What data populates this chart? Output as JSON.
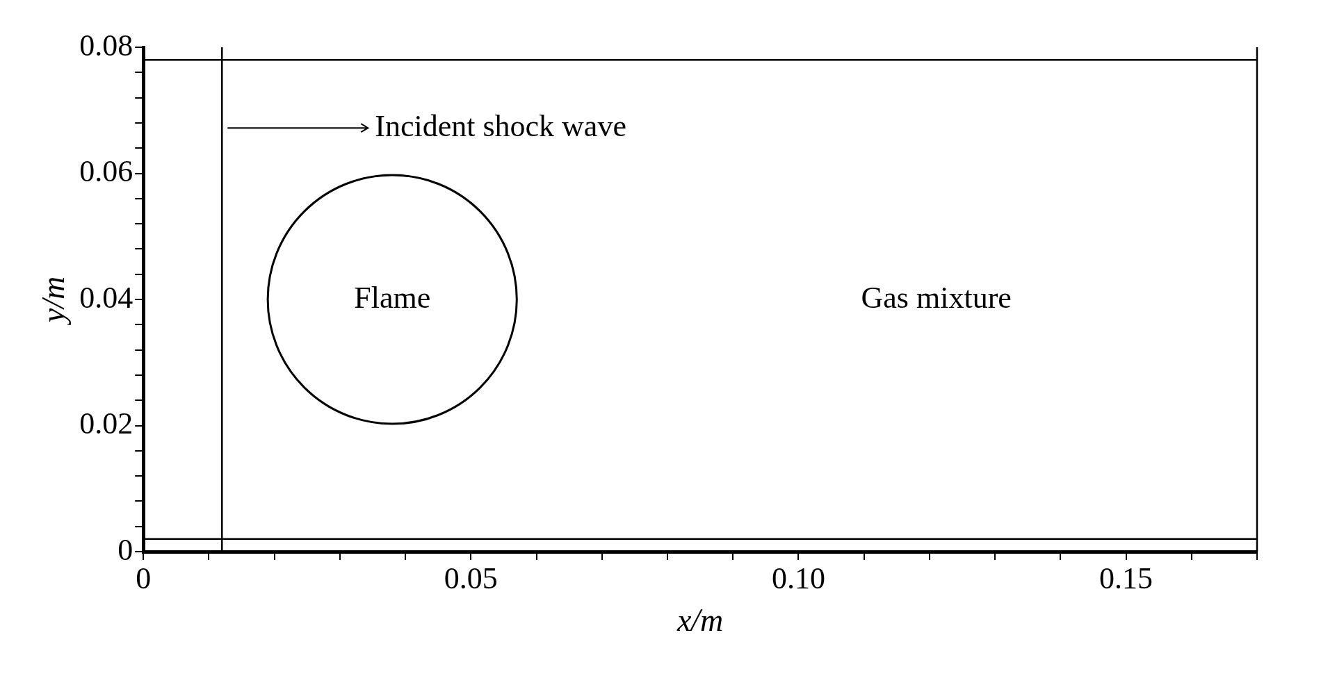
{
  "chart_data": {
    "type": "line",
    "xlabel": "x/m",
    "ylabel": "y/m",
    "xlim": [
      0,
      0.17
    ],
    "ylim": [
      0,
      0.08
    ],
    "xticks": [
      0,
      {
        "value": 0.01,
        "label": null
      },
      {
        "value": 0.02,
        "label": null
      },
      {
        "value": 0.03,
        "label": null
      },
      {
        "value": 0.04,
        "label": null
      },
      {
        "value": 0.05,
        "label": "0.05"
      },
      {
        "value": 0.06,
        "label": null
      },
      {
        "value": 0.07,
        "label": null
      },
      {
        "value": 0.08,
        "label": null
      },
      {
        "value": 0.09,
        "label": null
      },
      {
        "value": 0.1,
        "label": "0.10"
      },
      {
        "value": 0.11,
        "label": null
      },
      {
        "value": 0.12,
        "label": null
      },
      {
        "value": 0.13,
        "label": null
      },
      {
        "value": 0.14,
        "label": null
      },
      {
        "value": 0.15,
        "label": "0.15"
      },
      {
        "value": 0.16,
        "label": null
      },
      {
        "value": 0.17,
        "label": null
      }
    ],
    "yticks": [
      0,
      {
        "value": 0.004,
        "label": null
      },
      {
        "value": 0.008,
        "label": null
      },
      {
        "value": 0.012,
        "label": null
      },
      {
        "value": 0.016,
        "label": null
      },
      0.02,
      {
        "value": 0.024,
        "label": null
      },
      {
        "value": 0.028,
        "label": null
      },
      {
        "value": 0.032,
        "label": null
      },
      {
        "value": 0.036,
        "label": null
      },
      0.04,
      {
        "value": 0.044,
        "label": null
      },
      {
        "value": 0.048,
        "label": null
      },
      {
        "value": 0.052,
        "label": null
      },
      {
        "value": 0.056,
        "label": null
      },
      0.06,
      {
        "value": 0.064,
        "label": null
      },
      {
        "value": 0.068,
        "label": null
      },
      {
        "value": 0.072,
        "label": null
      },
      {
        "value": 0.076,
        "label": null
      },
      0.08
    ],
    "grid": false,
    "legend": false,
    "ref_lines": [
      {
        "axis": "y",
        "value": 0.002
      },
      {
        "axis": "y",
        "value": 0.078
      },
      {
        "axis": "x",
        "value": 0.17
      },
      {
        "axis": "x",
        "value": 0.012,
        "label": "Incident shock wave"
      }
    ],
    "annotations": [
      "Flame",
      "Gas mixture"
    ]
  }
}
